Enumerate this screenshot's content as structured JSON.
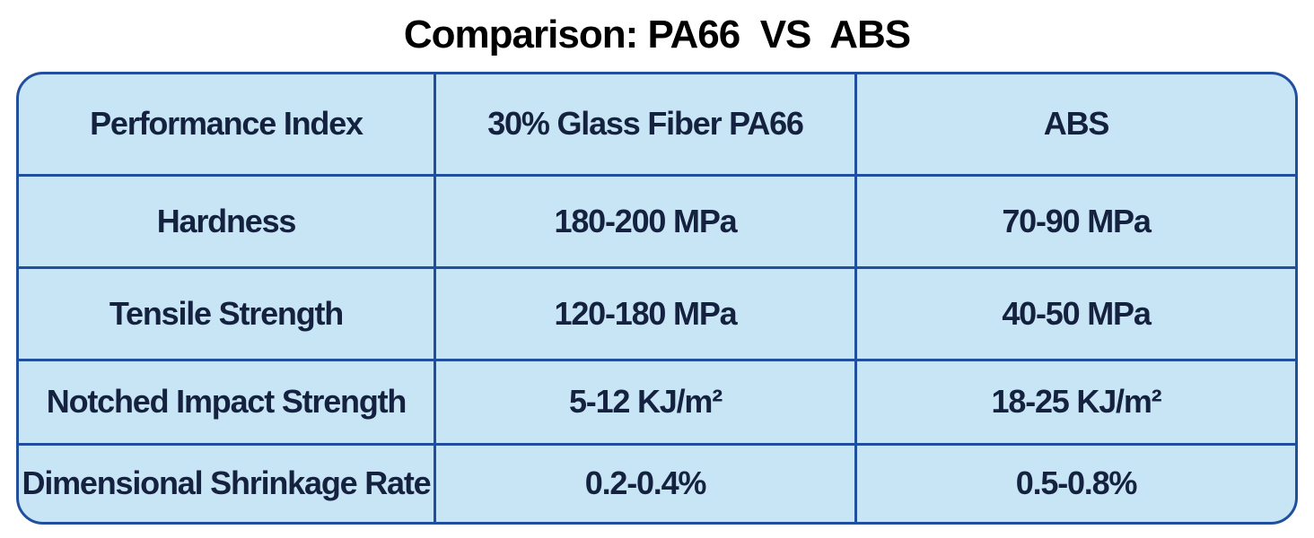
{
  "title": "Comparison: PA66  VS  ABS",
  "table": {
    "header": [
      "Performance Index",
      "30% Glass Fiber PA66",
      "ABS"
    ],
    "rows": [
      [
        "Hardness",
        "180-200 MPa",
        "70-90 MPa"
      ],
      [
        "Tensile Strength",
        "120-180 MPa",
        "40-50 MPa"
      ],
      [
        "Notched Impact Strength",
        "5-12 KJ/m²",
        "18-25 KJ/m²"
      ],
      [
        "Dimensional Shrinkage Rate",
        "0.2-0.4%",
        "0.5-0.8%"
      ]
    ]
  }
}
